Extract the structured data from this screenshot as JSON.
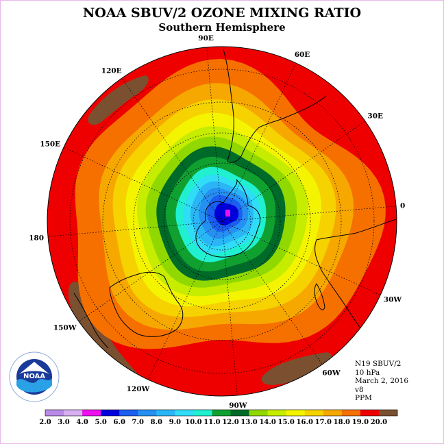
{
  "header": {
    "title": "NOAA SBUV/2 OZONE MIXING RATIO",
    "subtitle": "Southern Hemisphere"
  },
  "meridian_labels": [
    {
      "text": "0",
      "lon": 0
    },
    {
      "text": "30E",
      "lon": 30
    },
    {
      "text": "60E",
      "lon": 60
    },
    {
      "text": "90E",
      "lon": 90
    },
    {
      "text": "120E",
      "lon": 120
    },
    {
      "text": "150E",
      "lon": 150
    },
    {
      "text": "180",
      "lon": 180
    },
    {
      "text": "150W",
      "lon": -150
    },
    {
      "text": "120W",
      "lon": -120
    },
    {
      "text": "90W",
      "lon": -90
    },
    {
      "text": "60W",
      "lon": -60
    },
    {
      "text": "30W",
      "lon": -30
    }
  ],
  "info": {
    "satellite": "N19 SBUV/2",
    "level": "10 hPa",
    "date": "March 2, 2016",
    "version": "v8",
    "units": "PPM"
  },
  "logo": {
    "text": "NOAA"
  },
  "colorbar": {
    "labels": [
      "2.0",
      "3.0",
      "4.0",
      "5.0",
      "6.0",
      "7.0",
      "8.0",
      "9.0",
      "10.0",
      "11.0",
      "12.0",
      "13.0",
      "14.0",
      "15.0",
      "16.0",
      "17.0",
      "18.0",
      "19.0",
      "20.0"
    ],
    "colors": [
      "#b98ae8",
      "#d6aef2",
      "#ee10ee",
      "#0000dd",
      "#1a5ff0",
      "#2690f2",
      "#2ab6f6",
      "#30dcf6",
      "#20f0d0",
      "#10a030",
      "#006a28",
      "#90d800",
      "#c6ec00",
      "#f4f400",
      "#f6d200",
      "#f6a800",
      "#f67000",
      "#ee0000",
      "#7a5030"
    ]
  },
  "chart_data": {
    "type": "heatmap",
    "projection": "south polar stereographic",
    "quantity": "ozone mixing ratio",
    "units": "PPM",
    "pressure_level": "10 hPa",
    "date": "March 2, 2016",
    "contour_levels": [
      2,
      3,
      4,
      5,
      6,
      7,
      8,
      9,
      10,
      11,
      12,
      13,
      14,
      15,
      16,
      17,
      18,
      19,
      20
    ],
    "field_range": [
      5,
      20
    ],
    "minimum_location": "South Pole",
    "notes_values": {
      "pole_min": 4.5,
      "edge_max": 19.5
    }
  }
}
